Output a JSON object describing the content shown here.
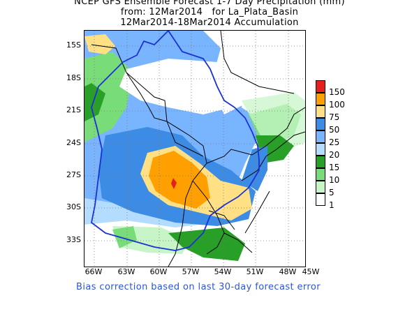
{
  "header": {
    "line1": "NCEP GFS Ensemble Forecast 1-7 Day Precipitation (mm)",
    "line2": "from: 12Mar2014   for La_Plata_Basin",
    "line3": "12Mar2014-18Mar2014 Accumulation"
  },
  "map": {
    "lat_labels": [
      "15S",
      "18S",
      "21S",
      "24S",
      "27S",
      "30S",
      "33S"
    ],
    "lon_labels": [
      "66W",
      "63W",
      "60W",
      "57W",
      "54W",
      "51W",
      "48W",
      "45W"
    ],
    "colors": {
      "c1": "#ffffff",
      "c5": "#c8f5c8",
      "c10": "#78dc78",
      "c15": "#28a028",
      "c20": "#b4dcff",
      "c25": "#78b4ff",
      "c50": "#3c8ce6",
      "c75": "#ffe084",
      "c100": "#ffa000",
      "c150": "#e61e1e",
      "basin_outline": "#1a32d2",
      "borders": "#000000"
    }
  },
  "legend": {
    "entries": [
      {
        "label": "150",
        "color": "#e61e1e"
      },
      {
        "label": "100",
        "color": "#ffa000"
      },
      {
        "label": "75",
        "color": "#ffe084"
      },
      {
        "label": "50",
        "color": "#3c8ce6"
      },
      {
        "label": "25",
        "color": "#78b4ff"
      },
      {
        "label": "20",
        "color": "#b4dcff"
      },
      {
        "label": "15",
        "color": "#28a028"
      },
      {
        "label": "10",
        "color": "#78dc78"
      },
      {
        "label": "5",
        "color": "#c8f5c8"
      },
      {
        "label": "1",
        "color": "#ffffff"
      }
    ]
  },
  "footnote": "Bias correction based on last 30-day forecast error"
}
